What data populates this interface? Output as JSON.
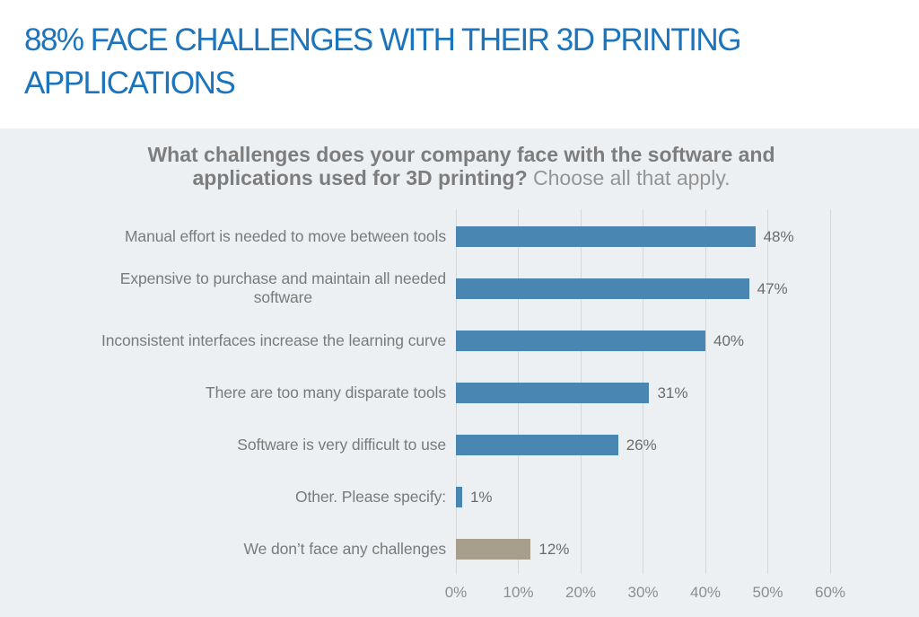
{
  "header": {
    "title": "88% FACE CHALLENGES WITH THEIR 3D PRINTING\nAPPLICATIONS"
  },
  "chart_data": {
    "type": "bar",
    "orientation": "horizontal",
    "title_bold": "What challenges does your company face with the software and\napplications used for 3D printing?",
    "title_regular": " Choose all that apply.",
    "categories": [
      "Manual effort is needed to move between tools",
      "Expensive to purchase and maintain all needed\nsoftware",
      "Inconsistent interfaces increase the learning curve",
      "There are too many disparate tools",
      "Software is very difficult to use",
      "Other. Please specify:",
      "We don’t face any challenges"
    ],
    "values": [
      48,
      47,
      40,
      31,
      26,
      1,
      12
    ],
    "value_labels": [
      "48%",
      "47%",
      "40%",
      "31%",
      "26%",
      "1%",
      "12%"
    ],
    "x_ticks": [
      "0%",
      "10%",
      "20%",
      "30%",
      "40%",
      "50%",
      "60%"
    ],
    "xlim": [
      0,
      60
    ],
    "grid": true,
    "highlight_index": 6,
    "colors": {
      "title_blue": "#1b74bc",
      "bar": "#4a86b2",
      "highlight_bar": "#a79e8c",
      "panel_background": "#edf0f3",
      "gridline": "#d6d9dc"
    }
  }
}
